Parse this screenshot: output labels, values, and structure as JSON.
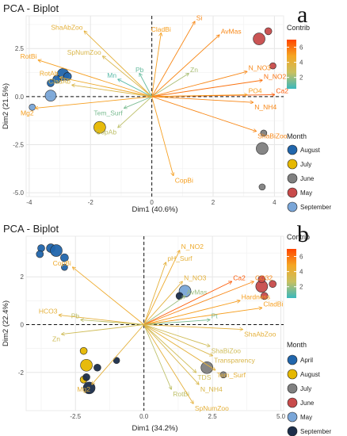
{
  "panels": [
    {
      "letter": "a",
      "title": "PCA - Biplot",
      "xlabel": "Dim1 (40.6%)",
      "ylabel": "Dim2 (21.5%)",
      "xticks": [
        -4,
        -2,
        0,
        2,
        4
      ],
      "yticks": [
        -5.0,
        -2.5,
        0.0,
        2.5
      ],
      "ytick_labels": [
        "-5.0",
        "-2.5",
        "0.0",
        "2.5"
      ],
      "xlim": [
        -4.1,
        4.3
      ],
      "ylim": [
        -5.2,
        4.2
      ],
      "contrib_title": "Contrib",
      "contrib_ticks": [
        "6",
        "4",
        "2"
      ],
      "month_title": "Month",
      "months": [
        {
          "name": "August",
          "color": "#2166ac"
        },
        {
          "name": "July",
          "color": "#e6b800"
        },
        {
          "name": "June",
          "color": "#808080"
        },
        {
          "name": "May",
          "color": "#c84b4b"
        },
        {
          "name": "September",
          "color": "#7aa6d8"
        }
      ]
    },
    {
      "letter": "b",
      "title": "PCA - Biplot",
      "xlabel": "Dim1 (34.2%)",
      "ylabel": "Dim2 (22.4%)",
      "xticks": [
        -2.5,
        0.0,
        2.5,
        5.0
      ],
      "xtick_labels": [
        "-2.5",
        "0.0",
        "2.5",
        "5.0"
      ],
      "yticks": [
        -2,
        0,
        2
      ],
      "ytick_labels": [
        "-2",
        "0",
        "2"
      ],
      "xlim": [
        -4.3,
        5.1
      ],
      "ylim": [
        -3.6,
        3.7
      ],
      "contrib_title": "Contrib",
      "contrib_ticks": [
        "6",
        "4",
        "2"
      ],
      "month_title": "Month",
      "months": [
        {
          "name": "April",
          "color": "#2166ac"
        },
        {
          "name": "August",
          "color": "#e6b800"
        },
        {
          "name": "July",
          "color": "#808080"
        },
        {
          "name": "June",
          "color": "#c84b4b"
        },
        {
          "name": "May",
          "color": "#7aa6d8"
        },
        {
          "name": "September",
          "color": "#1c2e4a"
        }
      ]
    }
  ],
  "chart_data": [
    {
      "type": "scatter",
      "title": "PCA - Biplot",
      "xlabel": "Dim1 (40.6%)",
      "ylabel": "Dim2 (21.5%)",
      "xlim": [
        -4.1,
        4.3
      ],
      "ylim": [
        -5.2,
        4.2
      ],
      "color_scale": [
        "#39b8bd",
        "#c8c060",
        "#f5a623",
        "#ff4500"
      ],
      "arrows": [
        {
          "label": "Si",
          "x": 1.4,
          "y": 3.9,
          "contrib": 5.5
        },
        {
          "label": "CladBi",
          "x": 0.3,
          "y": 3.3,
          "contrib": 5.0
        },
        {
          "label": "AvMas",
          "x": 2.2,
          "y": 3.2,
          "contrib": 5.5
        },
        {
          "label": "ShaAbZoo",
          "x": -2.2,
          "y": 3.4,
          "contrib": 4.0
        },
        {
          "label": "SpNumZoo",
          "x": -1.6,
          "y": 2.1,
          "contrib": 3.5
        },
        {
          "label": "Zn",
          "x": 1.2,
          "y": 1.2,
          "contrib": 2.2
        },
        {
          "label": "Pb",
          "x": -0.4,
          "y": 1.2,
          "contrib": 1.2
        },
        {
          "label": "Mn",
          "x": -1.1,
          "y": 0.9,
          "contrib": 1.0
        },
        {
          "label": "N_NO3",
          "x": 3.1,
          "y": 1.3,
          "contrib": 5.5
        },
        {
          "label": "N_NO2",
          "x": 3.6,
          "y": 0.85,
          "contrib": 6.0
        },
        {
          "label": "Ca2",
          "x": 4.0,
          "y": 0.1,
          "contrib": 6.5
        },
        {
          "label": "PO4",
          "x": 3.1,
          "y": 0.1,
          "contrib": 5.0
        },
        {
          "label": "N_NH4",
          "x": 3.3,
          "y": -0.3,
          "contrib": 5.5
        },
        {
          "label": "ShaBiZoo",
          "x": 3.4,
          "y": -1.8,
          "contrib": 5.5
        },
        {
          "label": "RotBi",
          "x": -3.7,
          "y": 1.9,
          "contrib": 5.0
        },
        {
          "label": "RotAb",
          "x": -3.0,
          "y": 1.0,
          "contrib": 4.5
        },
        {
          "label": "CladAb",
          "x": -2.6,
          "y": 0.6,
          "contrib": 3.5
        },
        {
          "label": "Mg2",
          "x": -3.8,
          "y": -0.6,
          "contrib": 5.0
        },
        {
          "label": "Tem_Surf",
          "x": -0.9,
          "y": -0.6,
          "contrib": 1.5
        },
        {
          "label": "CopAb",
          "x": -1.1,
          "y": -1.6,
          "contrib": 2.5
        },
        {
          "label": "CopBi",
          "x": 0.7,
          "y": -4.1,
          "contrib": 5.0
        }
      ],
      "points": [
        {
          "x": -2.9,
          "y": 1.15,
          "month": "August",
          "size": 1.0
        },
        {
          "x": -3.1,
          "y": 0.9,
          "month": "August",
          "size": 0.5
        },
        {
          "x": -2.75,
          "y": 1.05,
          "month": "August",
          "size": 0.5
        },
        {
          "x": -3.3,
          "y": 0.7,
          "month": "August",
          "size": 0.4
        },
        {
          "x": -3.3,
          "y": 0.05,
          "month": "September",
          "size": 0.9
        },
        {
          "x": -3.9,
          "y": -0.55,
          "month": "September",
          "size": 0.3
        },
        {
          "x": -1.7,
          "y": -1.6,
          "month": "July",
          "size": 1.0
        },
        {
          "x": 3.5,
          "y": 3.0,
          "month": "May",
          "size": 1.0
        },
        {
          "x": 3.8,
          "y": 3.4,
          "month": "May",
          "size": 0.4
        },
        {
          "x": 3.95,
          "y": 1.6,
          "month": "May",
          "size": 0.3
        },
        {
          "x": 3.6,
          "y": -2.7,
          "month": "June",
          "size": 1.0
        },
        {
          "x": 3.65,
          "y": -1.9,
          "month": "June",
          "size": 0.3
        },
        {
          "x": 3.6,
          "y": -4.7,
          "month": "June",
          "size": 0.3
        }
      ]
    },
    {
      "type": "scatter",
      "title": "PCA - Biplot",
      "xlabel": "Dim1 (34.2%)",
      "ylabel": "Dim2 (22.4%)",
      "xlim": [
        -4.3,
        5.1
      ],
      "ylim": [
        -3.6,
        3.7
      ],
      "color_scale": [
        "#39b8bd",
        "#c8c060",
        "#f5a623",
        "#ff4500"
      ],
      "arrows": [
        {
          "label": "N_NO2",
          "x": 1.3,
          "y": 3.1,
          "contrib": 4.5
        },
        {
          "label": "pH_Surf",
          "x": 0.8,
          "y": 2.6,
          "contrib": 4.0
        },
        {
          "label": "N_NO3",
          "x": 1.4,
          "y": 1.8,
          "contrib": 4.0
        },
        {
          "label": "AvMas",
          "x": 1.5,
          "y": 1.2,
          "contrib": 2.0
        },
        {
          "label": "Ca2",
          "x": 3.2,
          "y": 1.8,
          "contrib": 6.5
        },
        {
          "label": "CO32",
          "x": 4.0,
          "y": 1.8,
          "contrib": 5.5
        },
        {
          "label": "Hardness",
          "x": 3.5,
          "y": 1.0,
          "contrib": 5.0
        },
        {
          "label": "CladBi",
          "x": 4.3,
          "y": 0.7,
          "contrib": 5.0
        },
        {
          "label": "Pt",
          "x": 2.4,
          "y": 0.2,
          "contrib": 1.5
        },
        {
          "label": "ShaAbZoo",
          "x": 3.6,
          "y": -0.2,
          "contrib": 4.0
        },
        {
          "label": "ShaBiZoo",
          "x": 2.4,
          "y": -0.9,
          "contrib": 3.0
        },
        {
          "label": "Transparency",
          "x": 2.5,
          "y": -1.3,
          "contrib": 3.5
        },
        {
          "label": "Tem_Surf",
          "x": 2.6,
          "y": -1.9,
          "contrib": 4.0
        },
        {
          "label": "TDS",
          "x": 1.9,
          "y": -2.0,
          "contrib": 3.0
        },
        {
          "label": "N_NH4",
          "x": 2.0,
          "y": -2.5,
          "contrib": 3.5
        },
        {
          "label": "RotBi",
          "x": 1.0,
          "y": -2.7,
          "contrib": 2.5
        },
        {
          "label": "SpNumZoo",
          "x": 1.8,
          "y": -3.3,
          "contrib": 4.0
        },
        {
          "label": "CopBi",
          "x": -2.6,
          "y": 2.4,
          "contrib": 4.5
        },
        {
          "label": "HCO3",
          "x": -3.1,
          "y": 0.4,
          "contrib": 4.0
        },
        {
          "label": "Pb",
          "x": -2.3,
          "y": 0.2,
          "contrib": 2.5
        },
        {
          "label": "Zn",
          "x": -3.0,
          "y": -0.4,
          "contrib": 3.0
        },
        {
          "label": "Mg2",
          "x": -1.9,
          "y": -2.5,
          "contrib": 4.0
        }
      ],
      "points": [
        {
          "x": -3.4,
          "y": 3.2,
          "month": "April",
          "size": 0.6
        },
        {
          "x": -3.2,
          "y": 3.1,
          "month": "April",
          "size": 1.0
        },
        {
          "x": -2.9,
          "y": 2.8,
          "month": "April",
          "size": 0.5
        },
        {
          "x": -3.75,
          "y": 3.2,
          "month": "April",
          "size": 0.4
        },
        {
          "x": -3.8,
          "y": 2.95,
          "month": "April",
          "size": 0.4
        },
        {
          "x": -2.9,
          "y": 2.4,
          "month": "April",
          "size": 0.3
        },
        {
          "x": -2.1,
          "y": -1.7,
          "month": "August",
          "size": 1.0
        },
        {
          "x": -2.2,
          "y": -1.1,
          "month": "August",
          "size": 0.4
        },
        {
          "x": -2.2,
          "y": -2.3,
          "month": "August",
          "size": 0.4
        },
        {
          "x": -2.0,
          "y": -2.65,
          "month": "September",
          "size": 1.0
        },
        {
          "x": -1.7,
          "y": -1.8,
          "month": "September",
          "size": 0.4
        },
        {
          "x": -2.1,
          "y": -2.2,
          "month": "September",
          "size": 0.4
        },
        {
          "x": -1.0,
          "y": -1.5,
          "month": "September",
          "size": 0.3
        },
        {
          "x": 4.3,
          "y": 1.6,
          "month": "June",
          "size": 1.0
        },
        {
          "x": 4.7,
          "y": 1.7,
          "month": "June",
          "size": 0.4
        },
        {
          "x": 4.4,
          "y": 1.2,
          "month": "June",
          "size": 0.4
        },
        {
          "x": 4.3,
          "y": 1.9,
          "month": "June",
          "size": 0.4
        },
        {
          "x": 1.5,
          "y": 1.4,
          "month": "May",
          "size": 1.0
        },
        {
          "x": 1.3,
          "y": 1.2,
          "month": "September",
          "size": 0.4
        },
        {
          "x": 2.3,
          "y": -1.8,
          "month": "July",
          "size": 1.0
        },
        {
          "x": 2.9,
          "y": -2.1,
          "month": "July",
          "size": 0.3
        }
      ]
    }
  ]
}
